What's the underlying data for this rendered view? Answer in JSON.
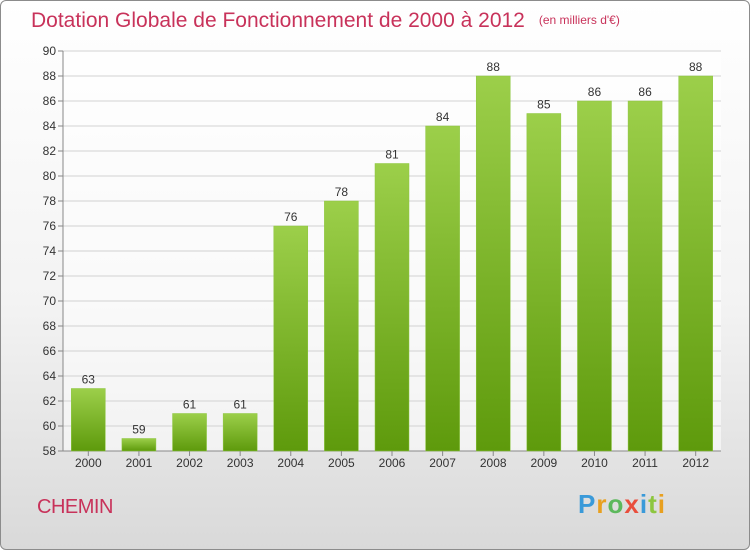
{
  "title": "Dotation Globale de Fonctionnement de 2000 à 2012",
  "unit": "(en milliers d'€)",
  "commune": "CHEMIN",
  "logo": "Proxiti",
  "colors": {
    "accent": "#c8325a",
    "bar_top": "#9ccf4a",
    "bar_bottom": "#5e9a0c"
  },
  "chart_data": {
    "type": "bar",
    "title": "Dotation Globale de Fonctionnement de 2000 à 2012",
    "subtitle": "(en milliers d'€)",
    "xlabel": "",
    "ylabel": "",
    "categories": [
      "2000",
      "2001",
      "2002",
      "2003",
      "2004",
      "2005",
      "2006",
      "2007",
      "2008",
      "2009",
      "2010",
      "2011",
      "2012"
    ],
    "values": [
      63,
      59,
      61,
      61,
      76,
      78,
      81,
      84,
      88,
      85,
      86,
      86,
      88
    ],
    "ylim": [
      58,
      90
    ],
    "yticks": [
      58,
      60,
      62,
      64,
      66,
      68,
      70,
      72,
      74,
      76,
      78,
      80,
      82,
      84,
      86,
      88,
      90
    ],
    "grid": true,
    "legend": "none"
  }
}
